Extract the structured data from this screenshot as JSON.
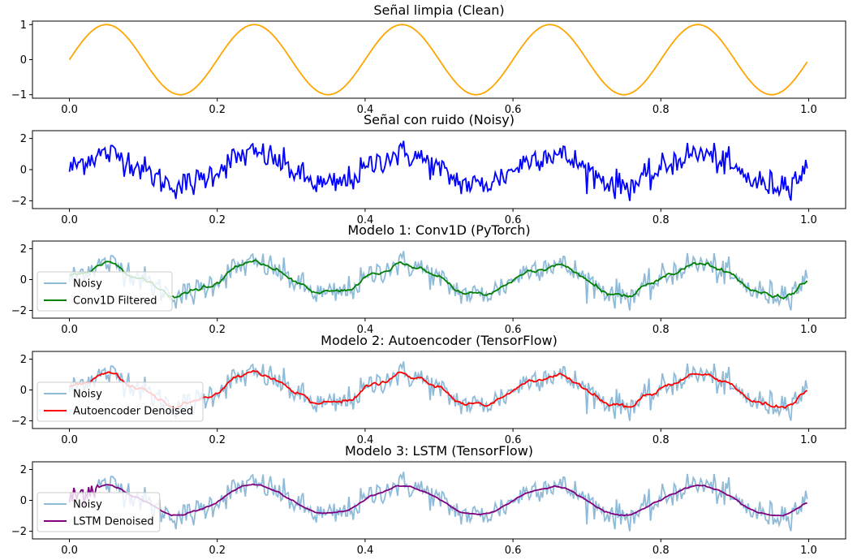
{
  "chart_data": [
    {
      "type": "line",
      "title": "Señal limpia (Clean)",
      "xlim": [
        -0.05,
        1.05
      ],
      "ylim": [
        -1.1,
        1.1
      ],
      "xticks": [
        "0.0",
        "0.2",
        "0.4",
        "0.6",
        "0.8",
        "1.0"
      ],
      "yticks": [
        "-1",
        "0",
        "1"
      ],
      "legend": null,
      "series": [
        {
          "kind": "clean",
          "color": "#ffa500",
          "x": [
            0.0,
            1.0
          ],
          "y_function": "sin(2*pi*5*x)"
        }
      ]
    },
    {
      "type": "line",
      "title": "Señal con ruido (Noisy)",
      "xlim": [
        -0.05,
        1.05
      ],
      "ylim": [
        -2.5,
        2.5
      ],
      "xticks": [
        "0.0",
        "0.2",
        "0.4",
        "0.6",
        "0.8",
        "1.0"
      ],
      "yticks": [
        "-2",
        "0",
        "2"
      ],
      "legend": null,
      "series": [
        {
          "kind": "noisy",
          "color": "#0000ff",
          "x": [
            0.0,
            1.0
          ],
          "y_function": "sin(2*pi*5*x) + noise(sigma=0.45)"
        }
      ]
    },
    {
      "type": "line",
      "title": "Modelo 1: Conv1D (PyTorch)",
      "xlim": [
        -0.05,
        1.05
      ],
      "ylim": [
        -2.5,
        2.5
      ],
      "xticks": [
        "0.0",
        "0.2",
        "0.4",
        "0.6",
        "0.8",
        "1.0"
      ],
      "yticks": [
        "-2",
        "0",
        "2"
      ],
      "legend": "left",
      "series": [
        {
          "name": "Noisy",
          "kind": "noisy",
          "color": "#1f77b4",
          "opacity": 0.5,
          "x": [
            0.0,
            1.0
          ]
        },
        {
          "name": "Conv1D Filtered",
          "kind": "filtered",
          "color": "#008000",
          "x": [
            0.0,
            1.0
          ]
        }
      ]
    },
    {
      "type": "line",
      "title": "Modelo 2: Autoencoder (TensorFlow)",
      "xlim": [
        -0.05,
        1.05
      ],
      "ylim": [
        -2.5,
        2.5
      ],
      "xticks": [
        "0.0",
        "0.2",
        "0.4",
        "0.6",
        "0.8",
        "1.0"
      ],
      "yticks": [
        "-2",
        "0",
        "2"
      ],
      "legend": "left",
      "series": [
        {
          "name": "Noisy",
          "kind": "noisy",
          "color": "#1f77b4",
          "opacity": 0.5,
          "x": [
            0.0,
            1.0
          ]
        },
        {
          "name": "Autoencoder Denoised",
          "kind": "denoised",
          "color": "#ff0000",
          "x": [
            0.0,
            1.0
          ]
        }
      ]
    },
    {
      "type": "line",
      "title": "Modelo 3: LSTM (TensorFlow)",
      "xlim": [
        -0.05,
        1.05
      ],
      "ylim": [
        -2.5,
        2.5
      ],
      "xticks": [
        "0.0",
        "0.2",
        "0.4",
        "0.6",
        "0.8",
        "1.0"
      ],
      "yticks": [
        "-2",
        "0",
        "2"
      ],
      "legend": "left",
      "series": [
        {
          "name": "Noisy",
          "kind": "noisy",
          "color": "#1f77b4",
          "opacity": 0.5,
          "x": [
            0.0,
            1.0
          ]
        },
        {
          "name": "LSTM Denoised",
          "kind": "lstm",
          "color": "#800080",
          "x": [
            0.0,
            1.0
          ]
        }
      ]
    }
  ]
}
